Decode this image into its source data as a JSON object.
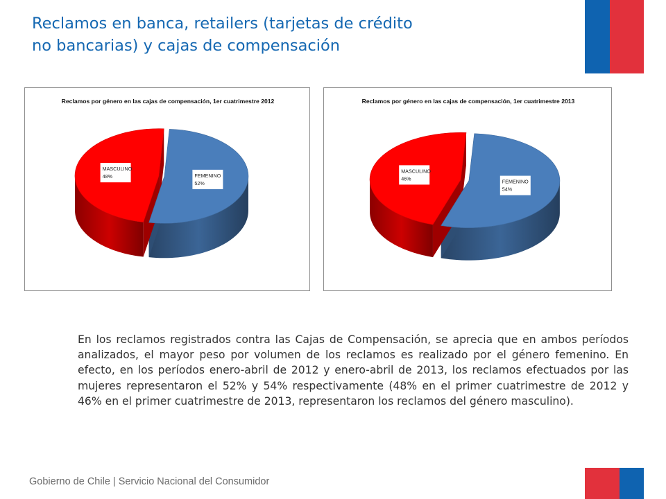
{
  "page": {
    "title_lines": [
      "Reclamos en banca, retailers (tarjetas de crédito",
      "no bancarias) y cajas de compensación"
    ],
    "body": "En los reclamos registrados contra las Cajas de Compensación, se aprecia que en ambos períodos analizados, el mayor peso por volumen de los reclamos es realizado por el género femenino. En efecto, en los períodos enero-abril de 2012 y enero-abril de 2013, los reclamos efectuados por las mujeres representaron el 52% y 54% respectivamente (48% en el primer cuatrimestre de 2012 y 46% en el primer cuatrimestre de 2013, representaron los reclamos del género masculino).",
    "footer": "Gobierno de Chile | Servicio Nacional del Consumidor"
  },
  "colors": {
    "title": "#1568b2",
    "flag_blue": "#0f63b0",
    "flag_red": "#e2313c",
    "femenino": "#4a7ebb",
    "masculino": "#ff0000"
  },
  "chart_data": [
    {
      "type": "pie",
      "title": "Reclamos por género en las cajas de compensación, 1er cuatrimestre 2012",
      "categories": [
        "FEMENINO",
        "MASCULINO"
      ],
      "values": [
        52,
        48
      ],
      "value_labels": [
        "52%",
        "48%"
      ],
      "colors": [
        "#4a7ebb",
        "#ff0000"
      ],
      "style": "3d-exploded",
      "legend": "none"
    },
    {
      "type": "pie",
      "title": "Reclamos por género en las cajas de compensación, 1er cuatrimestre 2013",
      "categories": [
        "FEMENINO",
        "MASCULINO"
      ],
      "values": [
        54,
        46
      ],
      "value_labels": [
        "54%",
        "46%"
      ],
      "colors": [
        "#4a7ebb",
        "#ff0000"
      ],
      "style": "3d-exploded",
      "legend": "none"
    }
  ]
}
